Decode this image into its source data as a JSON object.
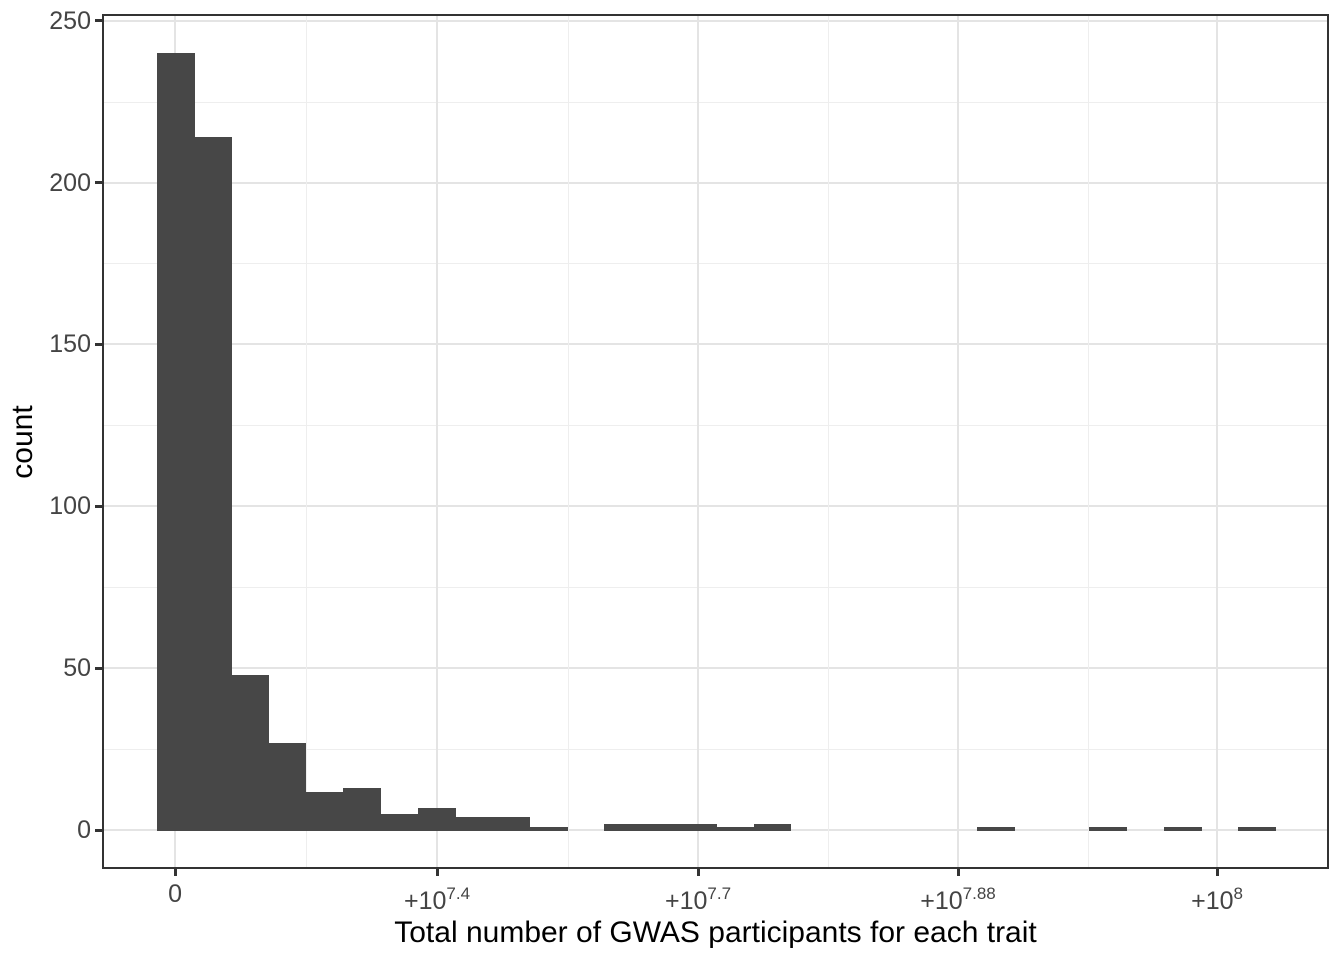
{
  "chart_data": {
    "type": "histogram",
    "title": "",
    "xlabel": "Total number of GWAS participants for each trait",
    "ylabel": "count",
    "legend": "none",
    "grid": "major+minor",
    "x_axis": {
      "scale_note": "transformed (log-like) axis as labeled on ticks",
      "ticks": [
        {
          "base": "0",
          "sup": "",
          "pos": 0.0581
        },
        {
          "base": "+10",
          "sup": "7.4",
          "pos": 0.2723
        },
        {
          "base": "+10",
          "sup": "7.7",
          "pos": 0.4857
        },
        {
          "base": "+10",
          "sup": "7.88",
          "pos": 0.6983
        },
        {
          "base": "+10",
          "sup": "8",
          "pos": 0.9101
        }
      ]
    },
    "y_axis": {
      "tick_values": [
        0,
        50,
        100,
        150,
        200,
        250
      ],
      "lim": [
        -11.3,
        251.4
      ]
    },
    "bins": {
      "start_pos": 0.0431,
      "width_pos": 0.0305,
      "counts": [
        240,
        214,
        48,
        27,
        12,
        13,
        5,
        7,
        4,
        4,
        1,
        0,
        2,
        2,
        2,
        1,
        2,
        0,
        0,
        0,
        0,
        0,
        1,
        0,
        0,
        1,
        0,
        1,
        0,
        1
      ]
    },
    "colors": {
      "bar": "#474747",
      "grid_major": "#E4E4E4",
      "grid_minor": "#EEEEEE",
      "panel_border": "#333333",
      "tick_mark": "#333333",
      "tick_label": "#444444",
      "axis_title": "#000000",
      "background": "#FFFFFF"
    }
  }
}
